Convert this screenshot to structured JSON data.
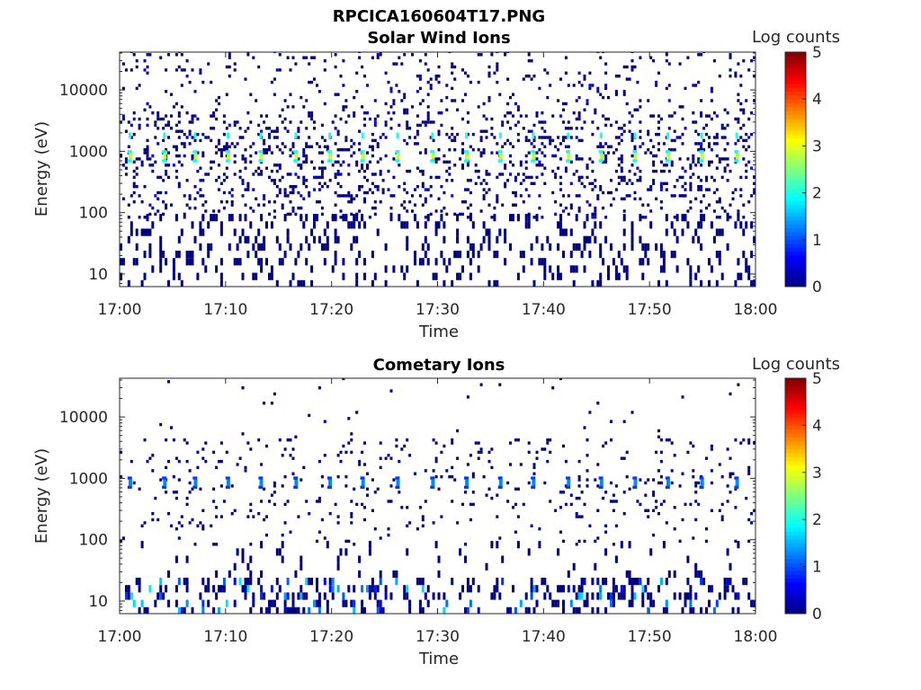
{
  "figure_title": "RPCICA160604T17.PNG",
  "chart_data": [
    {
      "type": "heatmap",
      "title": "Solar Wind Ions",
      "xlabel": "Time",
      "ylabel": "Energy (eV)",
      "xticks": [
        "17:00",
        "17:10",
        "17:20",
        "17:30",
        "17:40",
        "17:50",
        "18:00"
      ],
      "xlim_minutes": [
        0,
        60
      ],
      "yscale": "log",
      "yticks": [
        "10",
        "100",
        "1000",
        "10000"
      ],
      "ylim": [
        6.2,
        41000
      ],
      "colorbar": {
        "label": "Log counts",
        "range": [
          0,
          5
        ],
        "ticks": [
          "0",
          "1",
          "2",
          "3",
          "4",
          "5"
        ],
        "colormap": "jet"
      },
      "background": {
        "density_mid": 0.16,
        "density_high": 0.06,
        "density_low": 0.3,
        "log_counts": 0
      },
      "bursts": {
        "times_min": [
          0.85,
          4.1,
          7.0,
          10.1,
          13.2,
          16.5,
          19.7,
          22.8,
          26.1,
          29.4,
          32.6,
          35.8,
          38.9,
          42.2,
          45.3,
          48.5,
          51.6,
          54.8,
          58.1
        ],
        "primary_energy_eV": 830,
        "primary_log_counts": 2.8,
        "secondary_energy_eV": 1800,
        "secondary_log_counts": 2.0
      }
    },
    {
      "type": "heatmap",
      "title": "Cometary Ions",
      "xlabel": "Time",
      "ylabel": "Energy (eV)",
      "xticks": [
        "17:00",
        "17:10",
        "17:20",
        "17:30",
        "17:40",
        "17:50",
        "18:00"
      ],
      "xlim_minutes": [
        0,
        60
      ],
      "yscale": "log",
      "yticks": [
        "10",
        "100",
        "1000",
        "10000"
      ],
      "ylim": [
        6.2,
        41000
      ],
      "colorbar": {
        "label": "Log counts",
        "range": [
          0,
          5
        ],
        "ticks": [
          "0",
          "1",
          "2",
          "3",
          "4",
          "5"
        ],
        "colormap": "jet"
      },
      "background": {
        "density_mid": 0.05,
        "density_high": 0.008,
        "density_low": 0.3,
        "log_counts": 0
      },
      "bursts": {
        "times_min": [
          0.85,
          4.1,
          7.0,
          10.1,
          13.2,
          16.5,
          19.7,
          22.8,
          26.1,
          29.4,
          32.6,
          35.8,
          38.9,
          42.2,
          45.3,
          48.5,
          51.6,
          54.8,
          58.1
        ],
        "primary_energy_eV": 850,
        "primary_log_counts": 1.3
      }
    }
  ]
}
